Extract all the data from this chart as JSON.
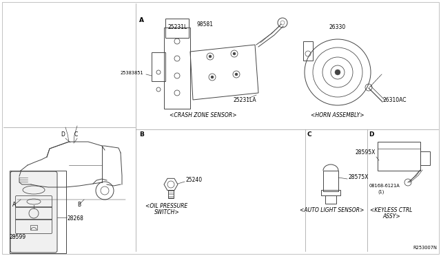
{
  "bg_color": "#ffffff",
  "line_color": "#444444",
  "text_color": "#000000",
  "parts": {
    "crash_top": "98581",
    "sensor1": "25231L",
    "sensor2": "25383851",
    "sensor3": "25231LA",
    "horn1": "26330",
    "horn2": "26310AC",
    "fob1": "28599",
    "fob2": "28268",
    "oil": "25240",
    "light": "28575X",
    "keyless1": "28595X",
    "keyless2": "08168-6121A",
    "keyless3": "(1)",
    "ref": "R253007N"
  },
  "labels": {
    "crash": "<CRASH ZONE SENSOR>",
    "horn": "<HORN ASSEMBLY>",
    "oil_l1": "<OIL PRESSURE",
    "oil_l2": "SWITCH>",
    "light_s": "<AUTO LIGHT SENSOR>",
    "keyless_l1": "<KEYLESS CTRL",
    "keyless_l2": "ASSY>"
  },
  "dividers": {
    "vert_main": 197,
    "horiz_mid": 188,
    "vert_b_c": 443,
    "vert_c_d": 533,
    "horiz_keyfob": 185
  }
}
